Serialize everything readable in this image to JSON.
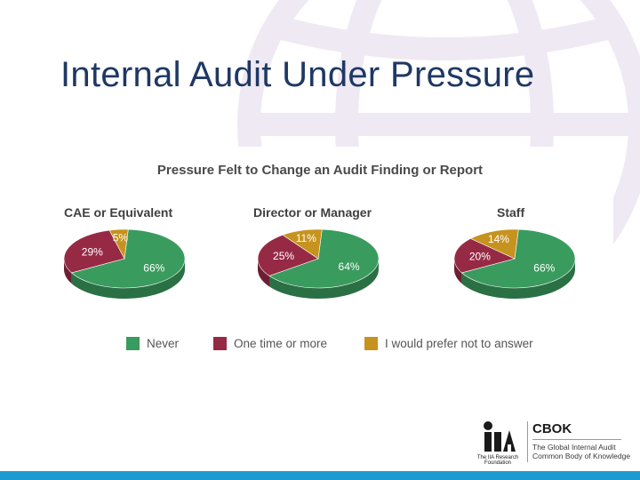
{
  "slide": {
    "title": "Internal Audit Under Pressure"
  },
  "footer": {
    "iia_caption_line1": "The IIA Research",
    "iia_caption_line2": "Foundation",
    "cbok_title": "CBOK",
    "cbok_line1": "The Global Internal Audit",
    "cbok_line2": "Common Body of Knowledge"
  },
  "colors": {
    "never": "#3a9b5e",
    "one_time": "#962a45",
    "prefer_not": "#c6931f",
    "title": "#1f3864",
    "bottom_bar": "#1d9bd1"
  },
  "chart_data": {
    "type": "pie",
    "title": "Pressure Felt to Change an Audit Finding or Report",
    "categories": [
      "Never",
      "One time or more",
      "I would prefer not to answer"
    ],
    "legend_position": "bottom",
    "series": [
      {
        "name": "CAE or Equivalent",
        "values": [
          66,
          29,
          5
        ],
        "labels": [
          "66%",
          "29%",
          "5%"
        ]
      },
      {
        "name": "Director or Manager",
        "values": [
          64,
          25,
          11
        ],
        "labels": [
          "64%",
          "25%",
          "11%"
        ]
      },
      {
        "name": "Staff",
        "values": [
          66,
          20,
          14
        ],
        "labels": [
          "66%",
          "20%",
          "14%"
        ]
      }
    ]
  }
}
